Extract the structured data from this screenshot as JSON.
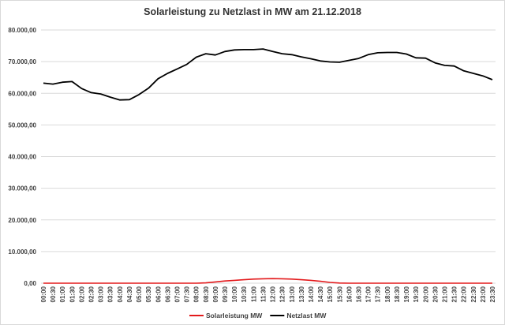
{
  "chart_data": {
    "type": "line",
    "title": "Solarleistung  zu Netzlast in MW am 21.12.2018",
    "xlabel": "",
    "ylabel": "",
    "ylim": [
      0,
      80000
    ],
    "yticks": [
      "0,00",
      "10.000,00",
      "20.000,00",
      "30.000,00",
      "40.000,00",
      "50.000,00",
      "60.000,00",
      "70.000,00",
      "80.000,00"
    ],
    "ytick_values": [
      0,
      10000,
      20000,
      30000,
      40000,
      50000,
      60000,
      70000,
      80000
    ],
    "grid": true,
    "legend_position": "bottom",
    "categories": [
      "00:00",
      "00:30",
      "01:00",
      "01:30",
      "02:00",
      "02:30",
      "03:00",
      "03:30",
      "04:00",
      "04:30",
      "05:00",
      "05:30",
      "06:00",
      "06:30",
      "07:00",
      "07:30",
      "08:00",
      "08:30",
      "09:00",
      "09:30",
      "10:00",
      "10:30",
      "11:00",
      "11:30",
      "12:00",
      "12:30",
      "13:00",
      "13:30",
      "14:00",
      "14:30",
      "15:00",
      "15:30",
      "16:00",
      "16:30",
      "17:00",
      "17:30",
      "18:00",
      "18:30",
      "19:00",
      "19:30",
      "20:00",
      "20:30",
      "21:00",
      "21:30",
      "22:00",
      "22:30",
      "23:00",
      "23:30"
    ],
    "series": [
      {
        "name": "Solarleistung MW",
        "color": "#e31a1c",
        "values": [
          0,
          0,
          0,
          0,
          0,
          0,
          0,
          0,
          0,
          0,
          0,
          0,
          0,
          0,
          0,
          0,
          0,
          100,
          400,
          700,
          900,
          1100,
          1300,
          1400,
          1450,
          1400,
          1300,
          1100,
          900,
          600,
          250,
          50,
          0,
          0,
          0,
          0,
          0,
          0,
          0,
          0,
          0,
          0,
          0,
          0,
          0,
          0,
          0,
          0
        ]
      },
      {
        "name": "Netzlast MW",
        "color": "#000000",
        "values": [
          63200,
          62900,
          63500,
          63700,
          61500,
          60200,
          59800,
          58800,
          57900,
          58000,
          59600,
          61600,
          64600,
          66300,
          67700,
          69100,
          71400,
          72500,
          72100,
          73200,
          73700,
          73800,
          73800,
          74000,
          73200,
          72500,
          72200,
          71500,
          70900,
          70200,
          69900,
          69800,
          70400,
          71000,
          72200,
          72800,
          72900,
          72900,
          72400,
          71200,
          71100,
          69600,
          68800,
          68600,
          67100,
          66300,
          65500,
          64300
        ]
      }
    ]
  }
}
